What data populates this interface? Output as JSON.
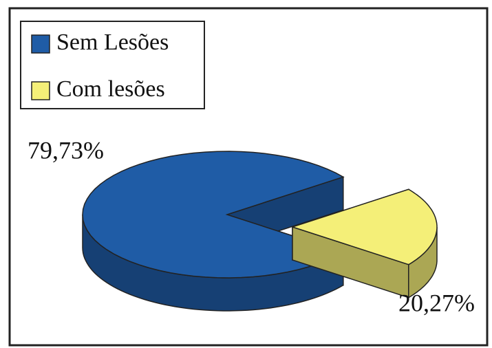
{
  "chart_data": {
    "type": "pie",
    "categories": [
      "Sem Lesões",
      "Com lesões"
    ],
    "values": [
      79.73,
      20.27
    ],
    "value_labels": [
      "79,73%",
      "20,27%"
    ],
    "colors": [
      "#1f5ca6",
      "#f4ef78"
    ],
    "legend": "top-left"
  }
}
